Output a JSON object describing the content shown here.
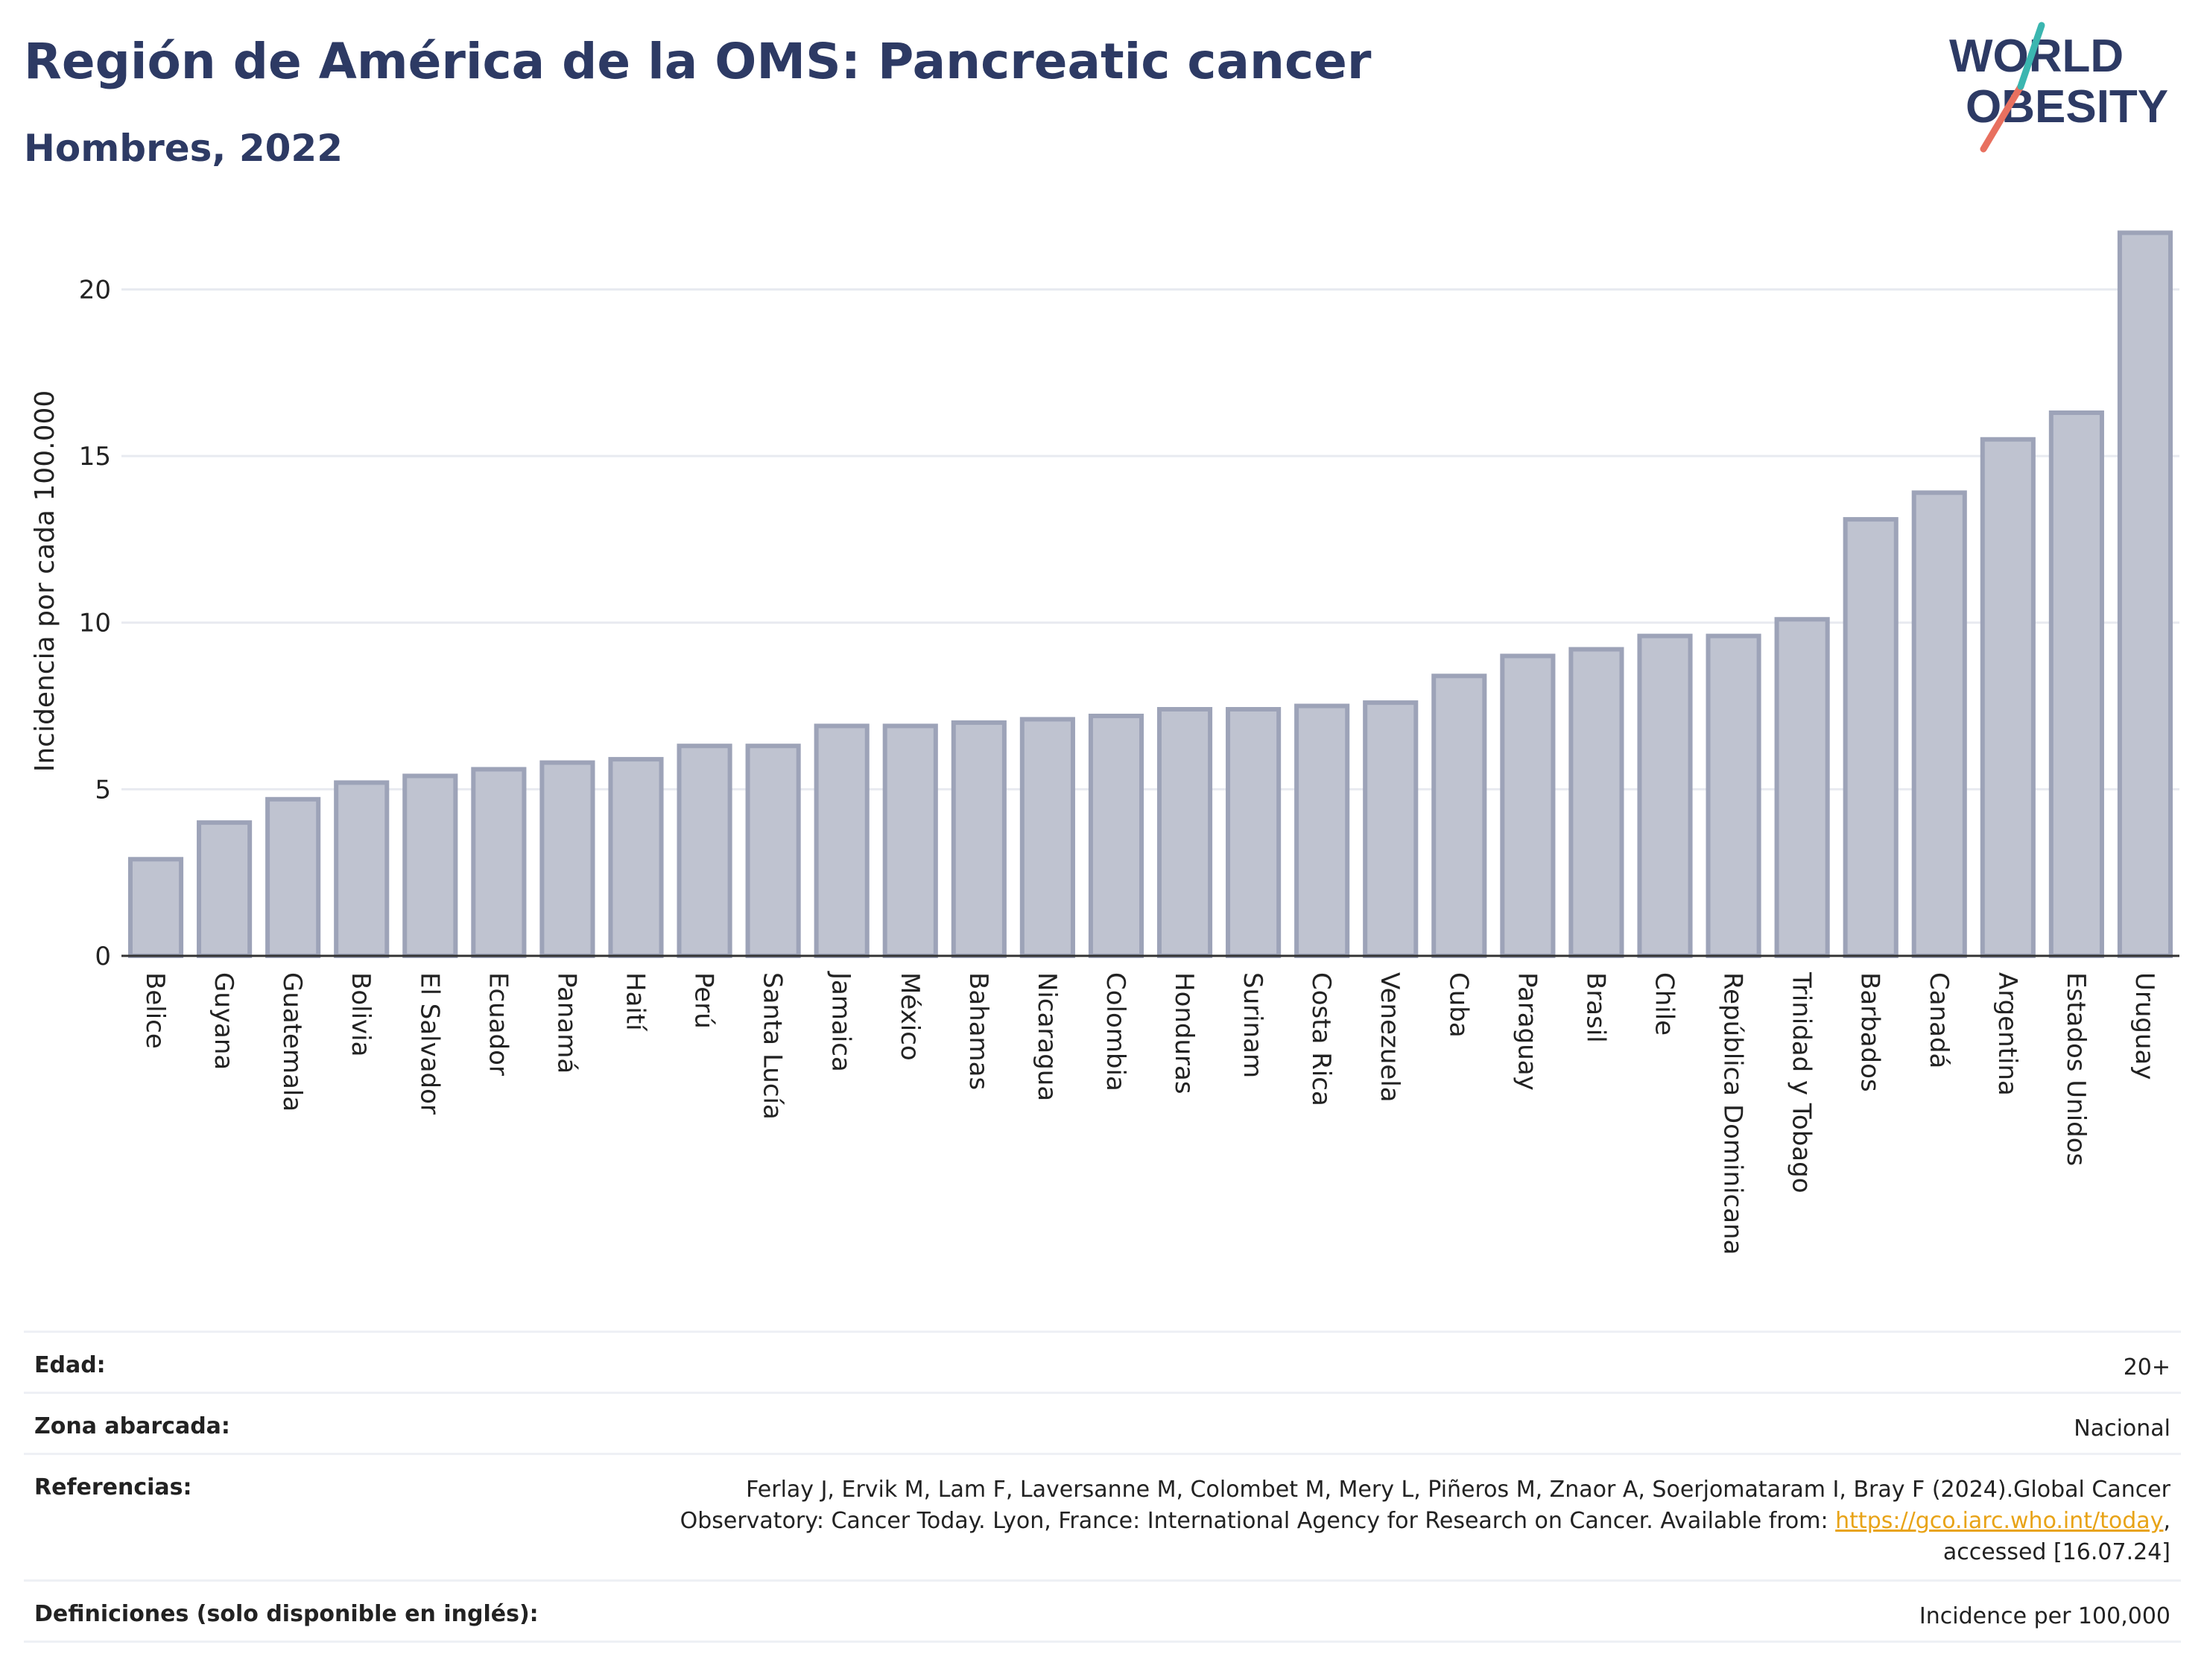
{
  "header": {
    "title": "Región de América de la OMS: Pancreatic cancer",
    "subtitle": "Hombres, 2022",
    "logo_line1": "WORLD",
    "logo_line2": "OBESITY"
  },
  "colors": {
    "title": "#2d3a64",
    "bar_fill": "#bfc3d0",
    "bar_stroke": "#9da3b8",
    "grid": "#e8eaf0",
    "logo_teal": "#3bb6b0",
    "logo_coral": "#e8705f",
    "link": "#e8a317"
  },
  "chart_data": {
    "type": "bar",
    "title": "Región de América de la OMS: Pancreatic cancer",
    "subtitle": "Hombres, 2022",
    "xlabel": "",
    "ylabel": "Incidencia por cada 100.000",
    "ylim": [
      0,
      22
    ],
    "yticks": [
      0,
      5,
      10,
      15,
      20
    ],
    "grid": true,
    "categories": [
      "Belice",
      "Guyana",
      "Guatemala",
      "Bolivia",
      "El Salvador",
      "Ecuador",
      "Panamá",
      "Haití",
      "Perú",
      "Santa Lucía",
      "Jamaica",
      "México",
      "Bahamas",
      "Nicaragua",
      "Colombia",
      "Honduras",
      "Surinam",
      "Costa Rica",
      "Venezuela",
      "Cuba",
      "Paraguay",
      "Brasil",
      "Chile",
      "República Dominicana",
      "Trinidad y Tobago",
      "Barbados",
      "Canadá",
      "Argentina",
      "Estados Unidos",
      "Uruguay"
    ],
    "values": [
      2.9,
      4.0,
      4.7,
      5.2,
      5.4,
      5.6,
      5.8,
      5.9,
      6.3,
      6.3,
      6.9,
      6.9,
      7.0,
      7.1,
      7.2,
      7.4,
      7.4,
      7.5,
      7.6,
      8.4,
      9.0,
      9.2,
      9.6,
      9.6,
      10.1,
      13.1,
      13.9,
      15.5,
      16.3,
      21.7
    ]
  },
  "meta": {
    "age_label": "Edad:",
    "age_value": "20+",
    "area_label": "Zona abarcada:",
    "area_value": "Nacional",
    "ref_label": "Referencias:",
    "ref_line1": "Ferlay J, Ervik M, Lam F, Laversanne M, Colombet M, Mery L, Piñeros M, Znaor A, Soerjomataram I, Bray F (2024).Global Cancer",
    "ref_line2_pre": "Observatory: Cancer Today. Lyon, France: International Agency for Research on Cancer. Available from: ",
    "ref_link": "https://gco.iarc.who.int/today",
    "ref_line2_post": ",",
    "ref_line3": "accessed [16.07.24]",
    "def_label": "Definiciones (solo disponible en inglés):",
    "def_value": "Incidence per 100,000"
  }
}
